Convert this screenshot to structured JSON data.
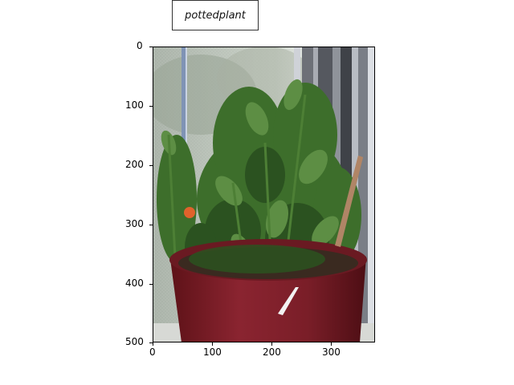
{
  "annotation": {
    "label": "pottedplant"
  },
  "axes": {
    "y_ticks": [
      "0",
      "100",
      "200",
      "300",
      "400",
      "500"
    ],
    "x_ticks": [
      "0",
      "100",
      "200",
      "300"
    ]
  },
  "image": {
    "subject_icon": "potted-plant-photo-icon",
    "colors": {
      "window_screen": "#b9c2b6",
      "curtain": "#8c8e94",
      "pot": "#7a1e28",
      "leaves": "#3d6e2b",
      "stake": "#b08566"
    }
  }
}
